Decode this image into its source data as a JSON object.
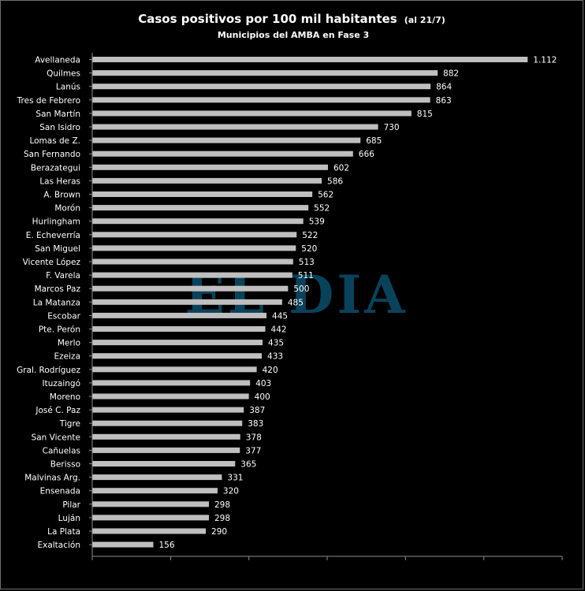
{
  "title": {
    "main": "Casos positivos por 100 mil habitantes",
    "suffix": "(al 21/7)",
    "subtitle": "Municipios del AMBA en Fase 3"
  },
  "watermark": "EL DIA",
  "colors": {
    "background": "#000000",
    "bar": "#bfbfbf",
    "axis": "#8c8c8c",
    "text": "#ffffff",
    "watermark": "#0f6a93",
    "border": "#6e6e6e"
  },
  "chart_data": {
    "type": "bar",
    "orientation": "horizontal",
    "title": "Casos positivos por 100 mil habitantes (al 21/7)",
    "subtitle": "Municipios del AMBA en Fase 3",
    "categories": [
      "Avellaneda",
      "Quilmes",
      "Lanús",
      "Tres de Febrero",
      "San Martín",
      "San Isidro",
      "Lomas de Z.",
      "San Fernando",
      "Berazategui",
      "Las Heras",
      "A. Brown",
      "Morón",
      "Hurlingham",
      "E. Echeverría",
      "San Miguel",
      "Vicente López",
      "F. Varela",
      "Marcos Paz",
      "La Matanza",
      "Escobar",
      "Pte. Perón",
      "Merlo",
      "Ezeiza",
      "Gral. Rodríguez",
      "Ituzaingó",
      "Moreno",
      "José C. Paz",
      "Tigre",
      "San Vicente",
      "Cañuelas",
      "Berisso",
      "Malvinas Arg.",
      "Ensenada",
      "Pilar",
      "Luján",
      "La Plata",
      "Exaltación"
    ],
    "values": [
      1112,
      882,
      864,
      863,
      815,
      730,
      685,
      666,
      602,
      586,
      562,
      552,
      539,
      522,
      520,
      513,
      511,
      500,
      485,
      445,
      442,
      435,
      433,
      420,
      403,
      400,
      387,
      383,
      378,
      377,
      365,
      331,
      320,
      298,
      298,
      290,
      156
    ],
    "value_labels": [
      "1.112",
      "882",
      "864",
      "863",
      "815",
      "730",
      "685",
      "666",
      "602",
      "586",
      "562",
      "552",
      "539",
      "522",
      "520",
      "513",
      "511",
      "500",
      "485",
      "445",
      "442",
      "435",
      "433",
      "420",
      "403",
      "400",
      "387",
      "383",
      "378",
      "377",
      "365",
      "331",
      "320",
      "298",
      "298",
      "290",
      "156"
    ],
    "xlim": [
      0,
      1200
    ],
    "x_tick_step": 200,
    "grid": false,
    "legend": "none"
  }
}
